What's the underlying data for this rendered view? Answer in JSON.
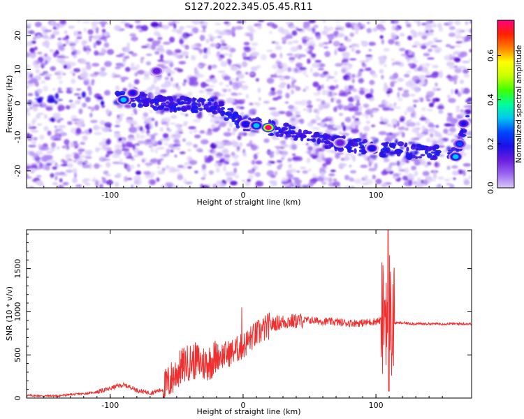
{
  "figure": {
    "title": "S127.2022.345.05.45.R11"
  },
  "chart_data": [
    {
      "type": "heatmap",
      "xlabel": "Height of straight line (km)",
      "ylabel": "Frequency (Hz)",
      "xlim": [
        -163,
        172
      ],
      "ylim": [
        -25,
        24.5
      ],
      "xticks": [
        -100,
        0,
        100
      ],
      "yticks": [
        -20,
        -10,
        0,
        10,
        20
      ],
      "colorbar": {
        "label": "Normalized spectral amplitude",
        "range": [
          0.0,
          0.76
        ],
        "ticks": [
          0.0,
          0.2,
          0.4,
          0.6
        ]
      },
      "colormap": [
        "#ffffff",
        "#d8c8f8",
        "#9a66f0",
        "#6a1ce0",
        "#1a10e8",
        "#0048ff",
        "#00c8f0",
        "#00ff9a",
        "#40ff00",
        "#c8ff00",
        "#ffff00",
        "#ff8000",
        "#ff2000",
        "#ff0080"
      ],
      "hot_spots": [
        {
          "x": -90,
          "y": 1,
          "amplitude": 0.33
        },
        {
          "x": -83,
          "y": 3,
          "amplitude": 0.22
        },
        {
          "x": -65,
          "y": 9.5,
          "amplitude": 0.18
        },
        {
          "x": 2,
          "y": -6.2,
          "amplitude": 0.25
        },
        {
          "x": 10,
          "y": -6.6,
          "amplitude": 0.33
        },
        {
          "x": 19,
          "y": -7.2,
          "amplitude": 0.76
        },
        {
          "x": 73,
          "y": -11.7,
          "amplitude": 0.2
        },
        {
          "x": 97,
          "y": -13.3,
          "amplitude": 0.26
        },
        {
          "x": 160,
          "y": -15.8,
          "amplitude": 0.36
        },
        {
          "x": 163,
          "y": -12,
          "amplitude": 0.28
        },
        {
          "x": 166,
          "y": -6,
          "amplitude": 0.22
        }
      ],
      "ridge": [
        [
          -95,
          2
        ],
        [
          -60,
          0
        ],
        [
          -20,
          -1
        ],
        [
          0,
          -6
        ],
        [
          20,
          -7.2
        ],
        [
          60,
          -11
        ],
        [
          100,
          -13.5
        ],
        [
          140,
          -14.5
        ],
        [
          160,
          -15.5
        ],
        [
          168,
          -5
        ],
        [
          170,
          1
        ]
      ],
      "gaps": [
        [
          -100,
          -95
        ],
        [
          13,
          20
        ],
        [
          100,
          104
        ],
        [
          149,
          154
        ]
      ]
    },
    {
      "type": "line",
      "xlabel": "Height of straight line (km)",
      "ylabel": "SNR (10 * v/v)",
      "xlim": [
        -163,
        172
      ],
      "ylim": [
        0,
        1950
      ],
      "xticks": [
        -100,
        0,
        100
      ],
      "yticks": [
        0,
        500,
        1000,
        1500
      ],
      "series": [
        {
          "color": "#ee3030",
          "x": [
            -163,
            -150,
            -140,
            -130,
            -120,
            -110,
            -100,
            -95,
            -90,
            -85,
            -80,
            -70,
            -60,
            -55,
            -50,
            -45,
            -40,
            -35,
            -30,
            -25,
            -20,
            -15,
            -10,
            -5,
            0,
            5,
            10,
            15,
            20,
            25,
            30,
            35,
            40,
            45,
            50,
            60,
            70,
            80,
            90,
            95,
            100,
            105,
            108,
            109,
            110,
            111,
            115,
            120,
            130,
            140,
            150,
            160,
            172
          ],
          "y": [
            30,
            25,
            25,
            40,
            50,
            70,
            110,
            140,
            150,
            130,
            90,
            60,
            100,
            200,
            300,
            380,
            420,
            430,
            400,
            420,
            480,
            500,
            520,
            560,
            600,
            680,
            740,
            790,
            840,
            870,
            880,
            890,
            890,
            900,
            900,
            890,
            880,
            870,
            870,
            880,
            890,
            900,
            1100,
            600,
            1300,
            880,
            870,
            870,
            860,
            860,
            860,
            860,
            860
          ]
        }
      ]
    }
  ]
}
